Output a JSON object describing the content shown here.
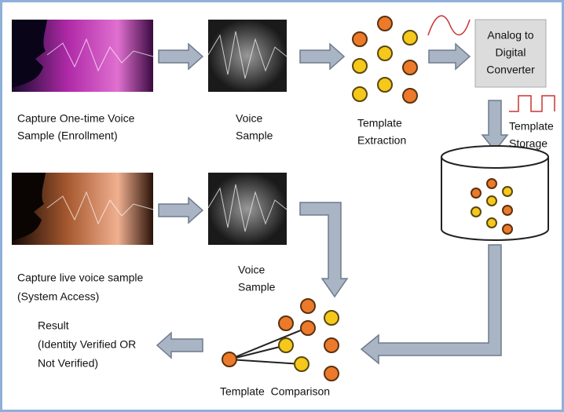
{
  "nodes": [
    {
      "label": [
        "Capture One-time Voice",
        "Sample (Enrollment)"
      ]
    },
    {
      "label": [
        "Voice",
        "Sample"
      ]
    },
    {
      "label": [
        "Template",
        "Extraction"
      ]
    },
    {
      "label": [
        "Analog to",
        "Digital",
        "Converter"
      ]
    },
    {
      "label": [
        "Template",
        "Storage"
      ]
    },
    {
      "label": [
        "Capture live voice sample",
        "(System Access)"
      ]
    },
    {
      "label": [
        "Voice",
        "Sample"
      ]
    },
    {
      "label": [
        "Result",
        "(Identity Verified OR",
        "Not Verified)"
      ]
    },
    {
      "label": [
        "Template  Comparison"
      ]
    }
  ]
}
